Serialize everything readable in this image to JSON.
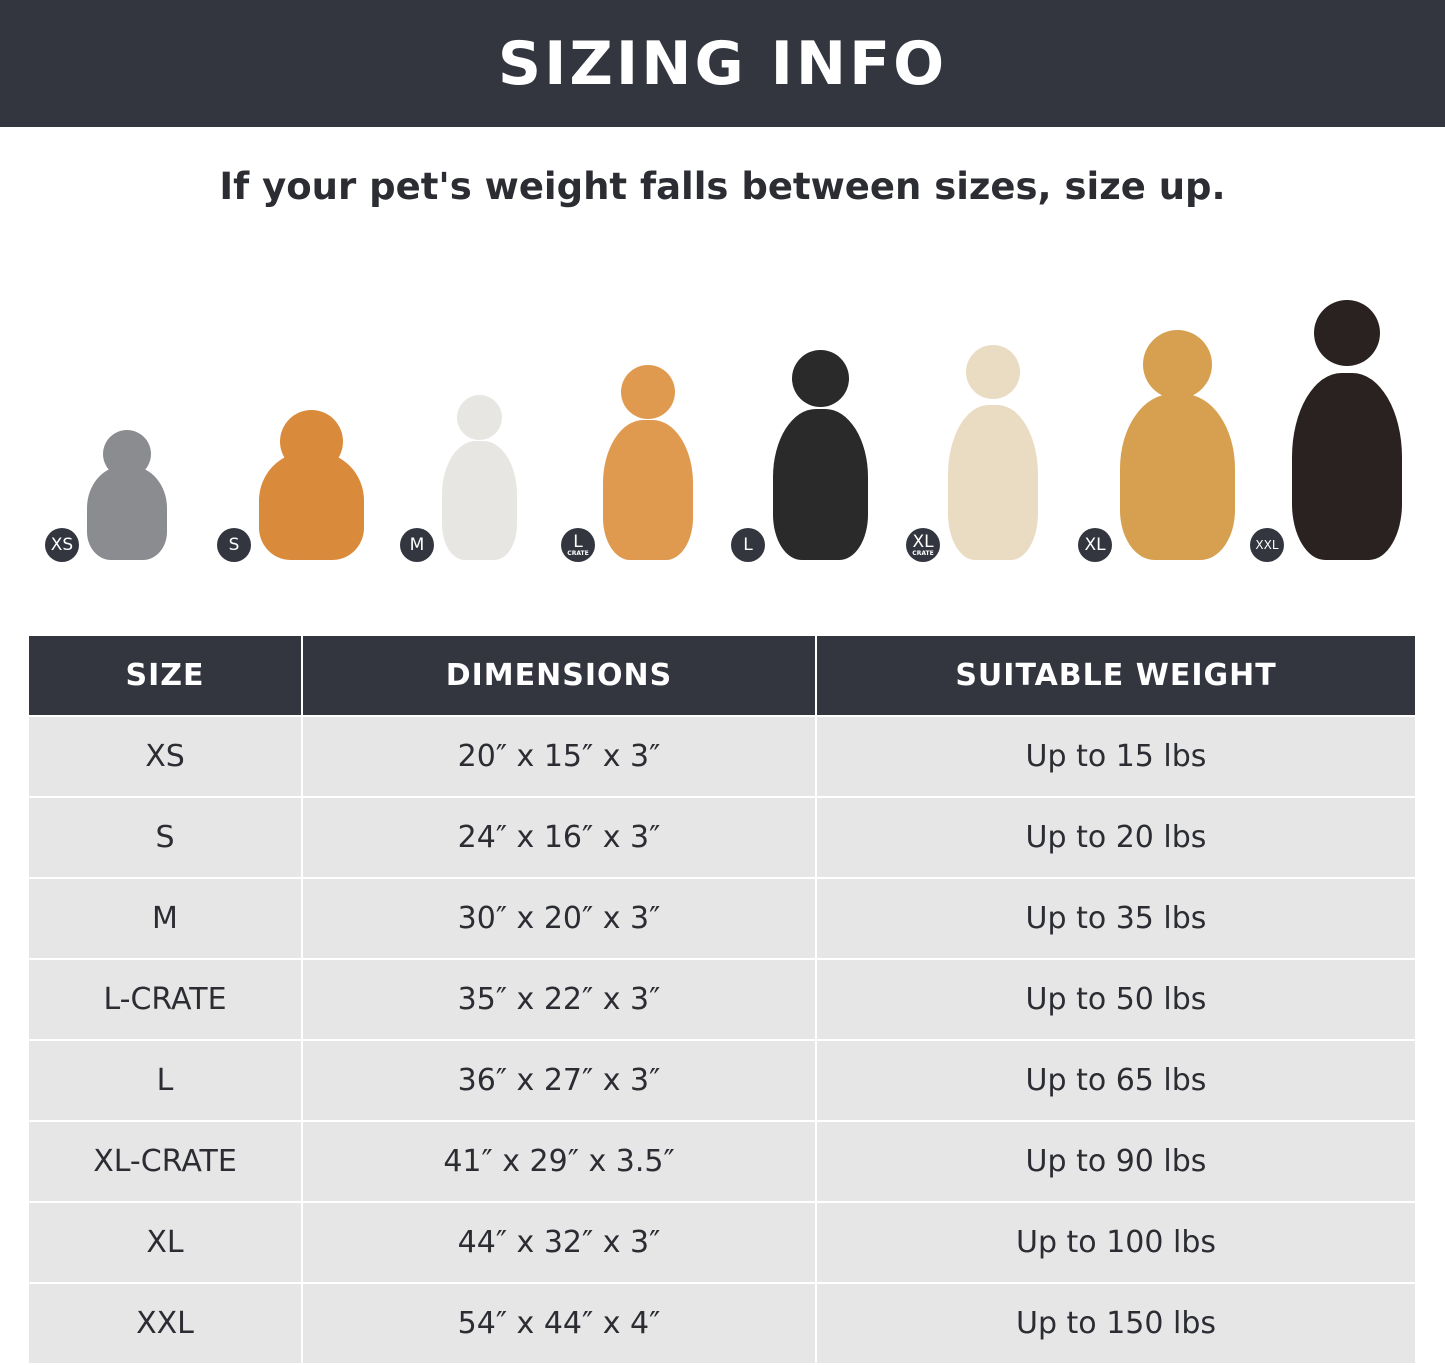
{
  "header": {
    "title": "SIZING INFO"
  },
  "subtitle": "If your pet's weight falls between sizes, size up.",
  "pets": [
    {
      "badge": "XS",
      "sub": "",
      "color": "#8a8c90"
    },
    {
      "badge": "S",
      "sub": "",
      "color": "#d98a3a"
    },
    {
      "badge": "M",
      "sub": "",
      "color": "#e8e6e2"
    },
    {
      "badge": "L",
      "sub": "CRATE",
      "color": "#e09a50"
    },
    {
      "badge": "L",
      "sub": "",
      "color": "#2a2a2a"
    },
    {
      "badge": "XL",
      "sub": "CRATE",
      "color": "#eadcc2"
    },
    {
      "badge": "XL",
      "sub": "",
      "color": "#d6a050"
    },
    {
      "badge": "XXL",
      "sub": "",
      "color": "#2a2220"
    }
  ],
  "table": {
    "headers": [
      "SIZE",
      "DIMENSIONS",
      "SUITABLE WEIGHT"
    ],
    "rows": [
      [
        "XS",
        "20″ x 15″ x 3″",
        "Up to 15 lbs"
      ],
      [
        "S",
        "24″ x 16″ x 3″",
        "Up to 20 lbs"
      ],
      [
        "M",
        "30″ x 20″ x 3″",
        "Up to 35 lbs"
      ],
      [
        "L-CRATE",
        "35″ x 22″ x 3″",
        "Up to 50 lbs"
      ],
      [
        "L",
        "36″ x 27″ x 3″",
        "Up to 65 lbs"
      ],
      [
        "XL-CRATE",
        "41″ x 29″ x 3.5″",
        "Up to 90 lbs"
      ],
      [
        "XL",
        "44″ x 32″ x 3″",
        "Up to 100 lbs"
      ],
      [
        "XXL",
        "54″ x 44″ x 4″",
        "Up to 150 lbs"
      ]
    ]
  }
}
